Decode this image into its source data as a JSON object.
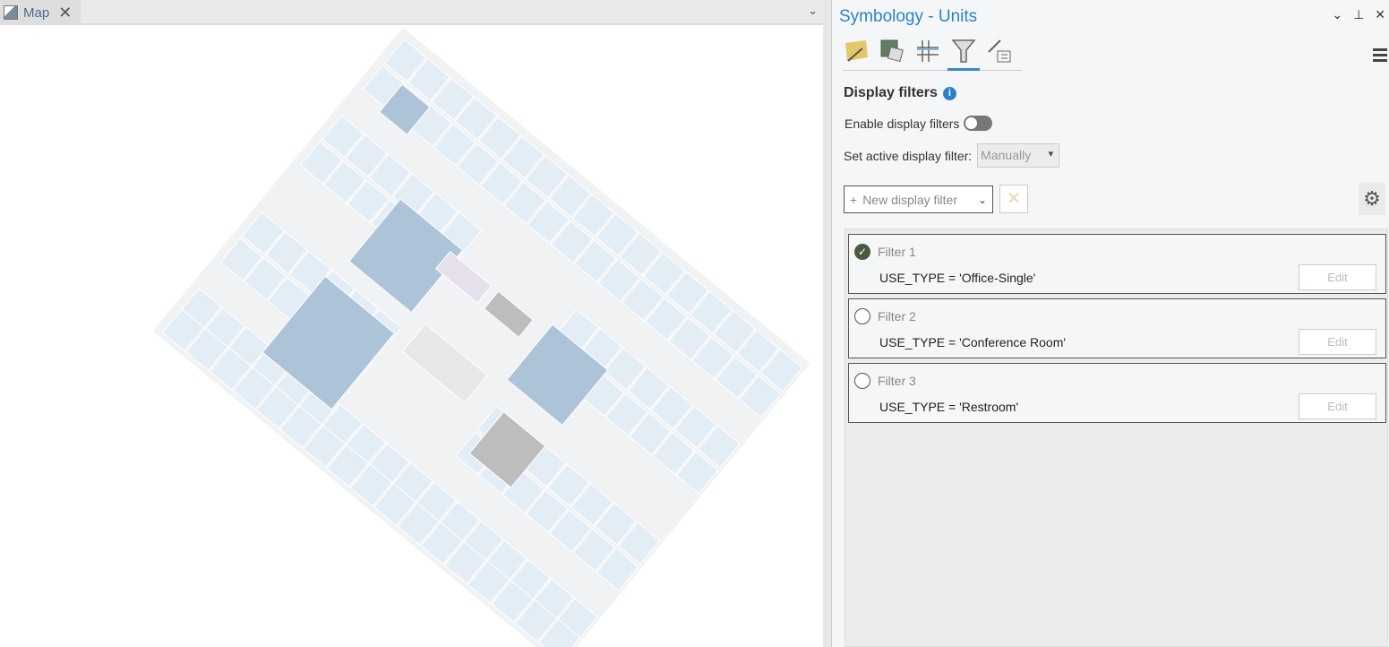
{
  "map_tab": {
    "label": "Map",
    "close": "✕",
    "chevron": "⌄"
  },
  "panel": {
    "title": "Symbology - Units",
    "controls": {
      "dropdown": "⌄",
      "pin": "⊥",
      "close": "✕"
    },
    "tabs": [
      {
        "icon": "primary-symbology-icon"
      },
      {
        "icon": "secondary-symbology-icon"
      },
      {
        "icon": "vary-symbology-icon"
      },
      {
        "icon": "display-filter-icon",
        "active": true
      },
      {
        "icon": "symbol-layer-drawing-icon"
      }
    ],
    "section_title": "Display filters",
    "enable_label": "Enable display filters",
    "enable_value": false,
    "set_active_label": "Set active display filter:",
    "set_active_value": "Manually",
    "new_filter_label": "New display filter",
    "plus": "+",
    "delete": "✕",
    "filters": [
      {
        "name": "Filter 1",
        "expression": "USE_TYPE = 'Office-Single'",
        "checked": true,
        "edit": "Edit"
      },
      {
        "name": "Filter 2",
        "expression": "USE_TYPE = 'Conference Room'",
        "checked": false,
        "edit": "Edit"
      },
      {
        "name": "Filter 3",
        "expression": "USE_TYPE = 'Restroom'",
        "checked": false,
        "edit": "Edit"
      }
    ]
  },
  "colors": {
    "accent": "#2b83c4",
    "room_light": "#e3edf5",
    "room_dark": "#adc4d8",
    "corridor": "#f0f2f4",
    "service": "#bdbdbd"
  }
}
